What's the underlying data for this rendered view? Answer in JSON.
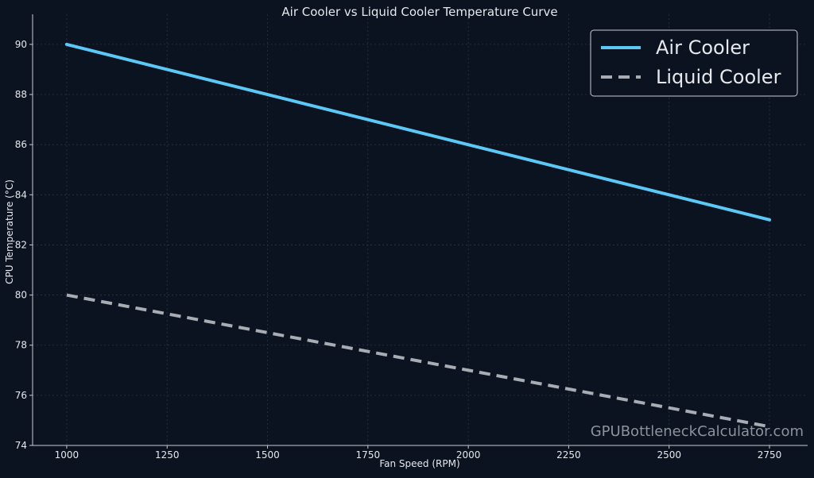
{
  "chart_data": {
    "type": "line",
    "title": "Air Cooler vs Liquid Cooler Temperature Curve",
    "xlabel": "Fan Speed (RPM)",
    "ylabel": "CPU Temperature (°C)",
    "xlim": [
      915,
      2845
    ],
    "ylim": [
      74,
      91.2
    ],
    "xticks": [
      1000,
      1250,
      1500,
      1750,
      2000,
      2250,
      2500,
      2750
    ],
    "yticks": [
      74,
      76,
      78,
      80,
      82,
      84,
      86,
      88,
      90
    ],
    "grid": true,
    "legend_position": "top-right",
    "series": [
      {
        "name": "Air Cooler",
        "color": "#5bc8f5",
        "style": "solid",
        "x": [
          1000,
          2750
        ],
        "y": [
          90,
          83
        ]
      },
      {
        "name": "Liquid Cooler",
        "color": "#a9adb3",
        "style": "dashed",
        "x": [
          1000,
          2750
        ],
        "y": [
          80,
          74.75
        ]
      }
    ]
  },
  "watermark": "GPUBottleneckCalculator.com",
  "colors": {
    "background": "#0b1220",
    "axis": "#c8ccd2",
    "grid": "#2a3447",
    "text": "#e6e8eb",
    "watermark": "#8d939b"
  }
}
